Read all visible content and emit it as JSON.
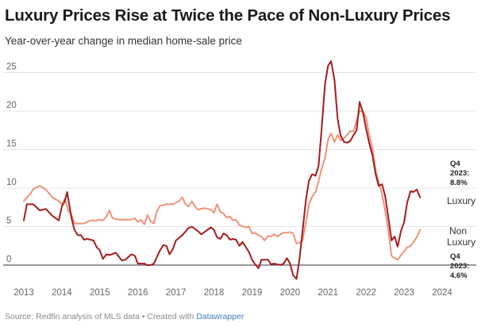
{
  "header": {
    "title": "Luxury Prices Rise at Twice the Pace of Non-Luxury Prices",
    "subtitle": "Year-over-year change in median home-sale price"
  },
  "footer": {
    "source": "Source: Redfin analysis of MLS data • Created with ",
    "tool": "Datawrapper"
  },
  "chart_data": {
    "type": "line",
    "title": "Luxury Prices Rise at Twice the Pace of Non-Luxury Prices",
    "subtitle": "Year-over-year change in median home-sale price",
    "xlabel": "",
    "ylabel": "",
    "xlim": [
      2013,
      2024
    ],
    "ylim": [
      -2,
      27
    ],
    "x_ticks": [
      "2013",
      "2014",
      "2015",
      "2016",
      "2017",
      "2018",
      "2019",
      "2020",
      "2021",
      "2022",
      "2023",
      "2024"
    ],
    "y_ticks": [
      "0",
      "5",
      "10",
      "15",
      "20",
      "25"
    ],
    "grid": "horizontal",
    "colors": {
      "luxury": "#a61c1c",
      "nonluxury": "#ec9478",
      "zero": "#333333",
      "grid": "#e4e4e4"
    },
    "series": [
      {
        "name": "Luxury",
        "values": [
          [
            2013.0,
            5.8
          ],
          [
            2013.08,
            7.9
          ],
          [
            2013.25,
            7.9
          ],
          [
            2013.42,
            7.1
          ],
          [
            2013.58,
            7.3
          ],
          [
            2013.75,
            6.4
          ],
          [
            2013.92,
            5.8
          ],
          [
            2014.0,
            7.6
          ],
          [
            2014.08,
            8.3
          ],
          [
            2014.14,
            9.5
          ],
          [
            2014.25,
            6.2
          ],
          [
            2014.33,
            4.6
          ],
          [
            2014.42,
            3.9
          ],
          [
            2014.5,
            3.9
          ],
          [
            2014.58,
            3.3
          ],
          [
            2014.67,
            3.4
          ],
          [
            2014.83,
            3.2
          ],
          [
            2014.92,
            2.3
          ],
          [
            2015.0,
            1.9
          ],
          [
            2015.08,
            0.8
          ],
          [
            2015.17,
            1.4
          ],
          [
            2015.25,
            1.3
          ],
          [
            2015.42,
            1.6
          ],
          [
            2015.58,
            0.6
          ],
          [
            2015.67,
            0.7
          ],
          [
            2015.83,
            1.4
          ],
          [
            2015.92,
            1.2
          ],
          [
            2016.0,
            0.2
          ],
          [
            2016.17,
            0.2
          ],
          [
            2016.25,
            0.0
          ],
          [
            2016.33,
            0.0
          ],
          [
            2016.42,
            0.2
          ],
          [
            2016.58,
            1.9
          ],
          [
            2016.67,
            2.6
          ],
          [
            2016.75,
            2.5
          ],
          [
            2016.83,
            1.4
          ],
          [
            2016.92,
            2.1
          ],
          [
            2017.0,
            3.2
          ],
          [
            2017.17,
            3.9
          ],
          [
            2017.33,
            4.8
          ],
          [
            2017.42,
            5.0
          ],
          [
            2017.58,
            4.4
          ],
          [
            2017.67,
            4.0
          ],
          [
            2017.83,
            4.6
          ],
          [
            2017.92,
            4.9
          ],
          [
            2018.0,
            4.6
          ],
          [
            2018.08,
            3.6
          ],
          [
            2018.17,
            3.4
          ],
          [
            2018.25,
            4.1
          ],
          [
            2018.33,
            3.9
          ],
          [
            2018.42,
            3.3
          ],
          [
            2018.5,
            3.4
          ],
          [
            2018.58,
            3.3
          ],
          [
            2018.67,
            2.5
          ],
          [
            2018.75,
            3.0
          ],
          [
            2018.83,
            2.4
          ],
          [
            2018.92,
            1.7
          ],
          [
            2019.0,
            0.7
          ],
          [
            2019.08,
            0.1
          ],
          [
            2019.17,
            -0.4
          ],
          [
            2019.25,
            0.7
          ],
          [
            2019.33,
            0.7
          ],
          [
            2019.42,
            0.7
          ],
          [
            2019.5,
            0.1
          ],
          [
            2019.58,
            0.2
          ],
          [
            2019.75,
            0.0
          ],
          [
            2019.83,
            0.2
          ],
          [
            2019.92,
            0.9
          ],
          [
            2020.0,
            0.2
          ],
          [
            2020.08,
            -1.3
          ],
          [
            2020.17,
            -1.8
          ],
          [
            2020.25,
            0.8
          ],
          [
            2020.33,
            4.5
          ],
          [
            2020.42,
            8.6
          ],
          [
            2020.5,
            11.0
          ],
          [
            2020.58,
            11.8
          ],
          [
            2020.67,
            11.6
          ],
          [
            2020.75,
            12.9
          ],
          [
            2020.83,
            17.6
          ],
          [
            2020.92,
            23.5
          ],
          [
            2021.0,
            25.9
          ],
          [
            2021.08,
            26.5
          ],
          [
            2021.17,
            24.0
          ],
          [
            2021.25,
            19.0
          ],
          [
            2021.33,
            16.8
          ],
          [
            2021.42,
            16.0
          ],
          [
            2021.5,
            15.9
          ],
          [
            2021.58,
            16.1
          ],
          [
            2021.67,
            16.9
          ],
          [
            2021.75,
            17.5
          ],
          [
            2021.83,
            21.2
          ],
          [
            2021.92,
            19.8
          ],
          [
            2022.0,
            17.7
          ],
          [
            2022.08,
            15.9
          ],
          [
            2022.17,
            14.2
          ],
          [
            2022.25,
            11.8
          ],
          [
            2022.33,
            10.3
          ],
          [
            2022.42,
            10.5
          ],
          [
            2022.5,
            9.0
          ],
          [
            2022.58,
            6.3
          ],
          [
            2022.67,
            3.2
          ],
          [
            2022.75,
            3.7
          ],
          [
            2022.83,
            2.4
          ],
          [
            2022.92,
            4.5
          ],
          [
            2023.0,
            5.6
          ],
          [
            2023.08,
            8.1
          ],
          [
            2023.17,
            9.6
          ],
          [
            2023.25,
            9.5
          ],
          [
            2023.33,
            9.8
          ],
          [
            2023.42,
            8.8
          ]
        ]
      },
      {
        "name": "Non Luxury",
        "values": [
          [
            2013.0,
            8.3
          ],
          [
            2013.08,
            8.8
          ],
          [
            2013.17,
            9.2
          ],
          [
            2013.25,
            9.9
          ],
          [
            2013.42,
            10.3
          ],
          [
            2013.58,
            9.8
          ],
          [
            2013.75,
            8.8
          ],
          [
            2013.92,
            8.3
          ],
          [
            2014.0,
            7.9
          ],
          [
            2014.08,
            8.6
          ],
          [
            2014.17,
            7.1
          ],
          [
            2014.25,
            6.6
          ],
          [
            2014.33,
            5.4
          ],
          [
            2014.42,
            5.4
          ],
          [
            2014.58,
            5.4
          ],
          [
            2014.75,
            5.8
          ],
          [
            2014.92,
            5.8
          ],
          [
            2015.0,
            5.9
          ],
          [
            2015.08,
            5.8
          ],
          [
            2015.17,
            6.3
          ],
          [
            2015.25,
            7.1
          ],
          [
            2015.33,
            6.1
          ],
          [
            2015.5,
            5.9
          ],
          [
            2015.67,
            5.9
          ],
          [
            2015.83,
            5.9
          ],
          [
            2015.92,
            6.1
          ],
          [
            2016.0,
            5.6
          ],
          [
            2016.08,
            5.9
          ],
          [
            2016.17,
            5.3
          ],
          [
            2016.25,
            6.5
          ],
          [
            2016.33,
            5.7
          ],
          [
            2016.42,
            5.4
          ],
          [
            2016.5,
            7.0
          ],
          [
            2016.58,
            7.7
          ],
          [
            2016.75,
            7.9
          ],
          [
            2016.92,
            7.9
          ],
          [
            2017.08,
            8.3
          ],
          [
            2017.17,
            8.8
          ],
          [
            2017.25,
            7.9
          ],
          [
            2017.33,
            7.6
          ],
          [
            2017.42,
            8.3
          ],
          [
            2017.5,
            7.6
          ],
          [
            2017.58,
            7.2
          ],
          [
            2017.75,
            7.4
          ],
          [
            2017.92,
            7.2
          ],
          [
            2018.0,
            6.8
          ],
          [
            2018.08,
            7.9
          ],
          [
            2018.17,
            6.9
          ],
          [
            2018.25,
            6.7
          ],
          [
            2018.33,
            6.2
          ],
          [
            2018.42,
            6.3
          ],
          [
            2018.5,
            5.8
          ],
          [
            2018.58,
            5.9
          ],
          [
            2018.67,
            5.2
          ],
          [
            2018.83,
            4.9
          ],
          [
            2018.92,
            5.0
          ],
          [
            2019.0,
            4.1
          ],
          [
            2019.08,
            4.2
          ],
          [
            2019.17,
            3.9
          ],
          [
            2019.25,
            3.7
          ],
          [
            2019.33,
            3.2
          ],
          [
            2019.42,
            3.8
          ],
          [
            2019.5,
            3.7
          ],
          [
            2019.58,
            4.0
          ],
          [
            2019.67,
            3.7
          ],
          [
            2019.75,
            4.0
          ],
          [
            2019.83,
            4.2
          ],
          [
            2019.92,
            4.2
          ],
          [
            2020.0,
            4.3
          ],
          [
            2020.08,
            4.1
          ],
          [
            2020.17,
            2.8
          ],
          [
            2020.25,
            2.9
          ],
          [
            2020.33,
            3.2
          ],
          [
            2020.42,
            5.7
          ],
          [
            2020.5,
            7.9
          ],
          [
            2020.58,
            8.9
          ],
          [
            2020.67,
            9.5
          ],
          [
            2020.75,
            10.9
          ],
          [
            2020.83,
            12.5
          ],
          [
            2020.92,
            13.9
          ],
          [
            2021.0,
            16.3
          ],
          [
            2021.08,
            17.1
          ],
          [
            2021.17,
            16.0
          ],
          [
            2021.25,
            16.9
          ],
          [
            2021.33,
            16.2
          ],
          [
            2021.42,
            16.5
          ],
          [
            2021.5,
            16.9
          ],
          [
            2021.58,
            17.4
          ],
          [
            2021.67,
            17.4
          ],
          [
            2021.75,
            18.7
          ],
          [
            2021.83,
            20.0
          ],
          [
            2021.92,
            19.9
          ],
          [
            2022.0,
            19.2
          ],
          [
            2022.08,
            16.9
          ],
          [
            2022.17,
            15.1
          ],
          [
            2022.25,
            12.3
          ],
          [
            2022.33,
            10.8
          ],
          [
            2022.42,
            9.2
          ],
          [
            2022.5,
            7.1
          ],
          [
            2022.58,
            4.6
          ],
          [
            2022.67,
            1.2
          ],
          [
            2022.75,
            0.9
          ],
          [
            2022.83,
            0.7
          ],
          [
            2022.92,
            1.3
          ],
          [
            2023.0,
            1.8
          ],
          [
            2023.08,
            2.3
          ],
          [
            2023.17,
            2.5
          ],
          [
            2023.25,
            3.0
          ],
          [
            2023.33,
            3.6
          ],
          [
            2023.42,
            4.6
          ]
        ]
      }
    ],
    "series_labels": {
      "luxury": "Luxury",
      "nonluxury_1": "Non",
      "nonluxury_2": "Luxury"
    },
    "annotations": [
      {
        "lines": [
          "Q4",
          "2023:",
          "8.8%"
        ]
      },
      {
        "lines": [
          "Q4",
          "2023:",
          "4.6%"
        ]
      }
    ]
  }
}
